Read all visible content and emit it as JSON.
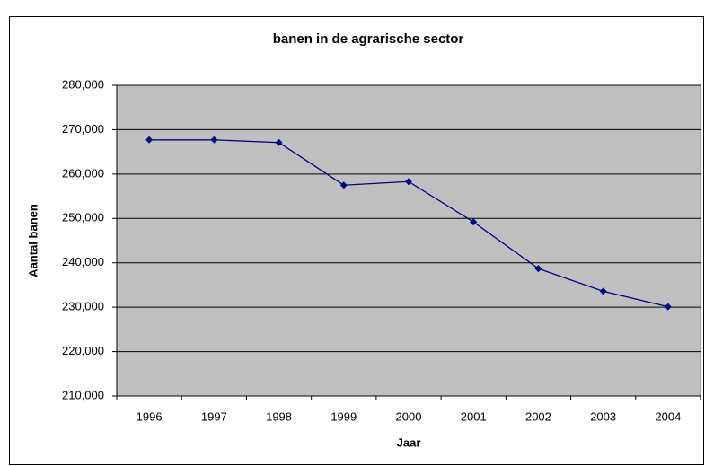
{
  "chart_data": {
    "type": "line",
    "title": "banen in de agrarische sector",
    "x_label": "Jaar",
    "y_label": "Aantal banen",
    "categories": [
      "1996",
      "1997",
      "1998",
      "1999",
      "2000",
      "2001",
      "2002",
      "2003",
      "2004"
    ],
    "series": [
      {
        "name": "Aantal banen",
        "color": "#000080",
        "values": [
          267700,
          267700,
          267100,
          257500,
          258300,
          249200,
          238700,
          233600,
          230100
        ]
      }
    ],
    "ylim": [
      210000,
      280000
    ],
    "yticks": [
      {
        "value": 210000,
        "label": "210,000"
      },
      {
        "value": 220000,
        "label": "220,000"
      },
      {
        "value": 230000,
        "label": "230,000"
      },
      {
        "value": 240000,
        "label": "240,000"
      },
      {
        "value": 250000,
        "label": "250,000"
      },
      {
        "value": 260000,
        "label": "260,000"
      },
      {
        "value": 270000,
        "label": "270,000"
      },
      {
        "value": 280000,
        "label": "280,000"
      }
    ],
    "grid": true,
    "plot_background": "#c0c0c0"
  }
}
